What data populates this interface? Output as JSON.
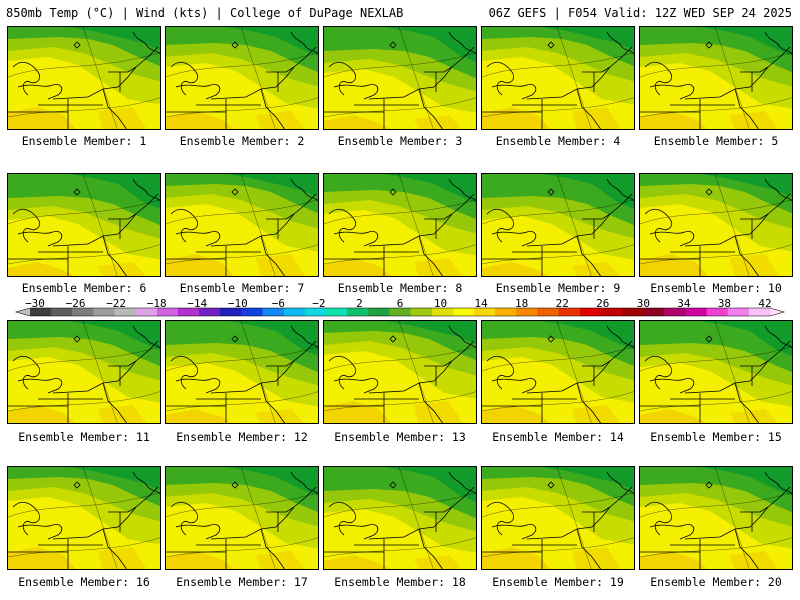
{
  "header": {
    "left": "850mb Temp (°C) | Wind (kts) | College of DuPage NEXLAB",
    "right": "06Z GEFS | F054 Valid: 12Z WED SEP 24 2025"
  },
  "caption_prefix": "Ensemble Member: ",
  "members": [
    "1",
    "2",
    "3",
    "4",
    "5",
    "6",
    "7",
    "8",
    "9",
    "10",
    "11",
    "12",
    "13",
    "14",
    "15",
    "16",
    "17",
    "18",
    "19",
    "20"
  ],
  "colors": {
    "deep_green": "#129b2b",
    "green": "#3caa1e",
    "yellow_green": "#96c80a",
    "lime": "#c8dc00",
    "yellow": "#f5f000",
    "orange": "#f0c800"
  },
  "colorbar": {
    "labels": [
      "−30",
      "−26",
      "−22",
      "−18",
      "−14",
      "−10",
      "−6",
      "−2",
      "2",
      "6",
      "10",
      "14",
      "18",
      "22",
      "26",
      "30",
      "34",
      "38",
      "42"
    ],
    "colors": [
      "#3f3f3f",
      "#5e5e5e",
      "#7d7d7d",
      "#9c9c9c",
      "#b9b9b9",
      "#e0a0e8",
      "#d060e0",
      "#b030d0",
      "#7020c0",
      "#2020c0",
      "#1040e0",
      "#1088f0",
      "#10b8f0",
      "#10d8e0",
      "#10e0b0",
      "#10c070",
      "#20a040",
      "#60b020",
      "#a0c810",
      "#e0e000",
      "#f8f800",
      "#f8d800",
      "#f8b000",
      "#f88800",
      "#f06000",
      "#e83000",
      "#e00000",
      "#c00000",
      "#a00000",
      "#900020",
      "#b00070",
      "#d000a0",
      "#f040d0",
      "#f080f0",
      "#f8c0f8"
    ]
  }
}
